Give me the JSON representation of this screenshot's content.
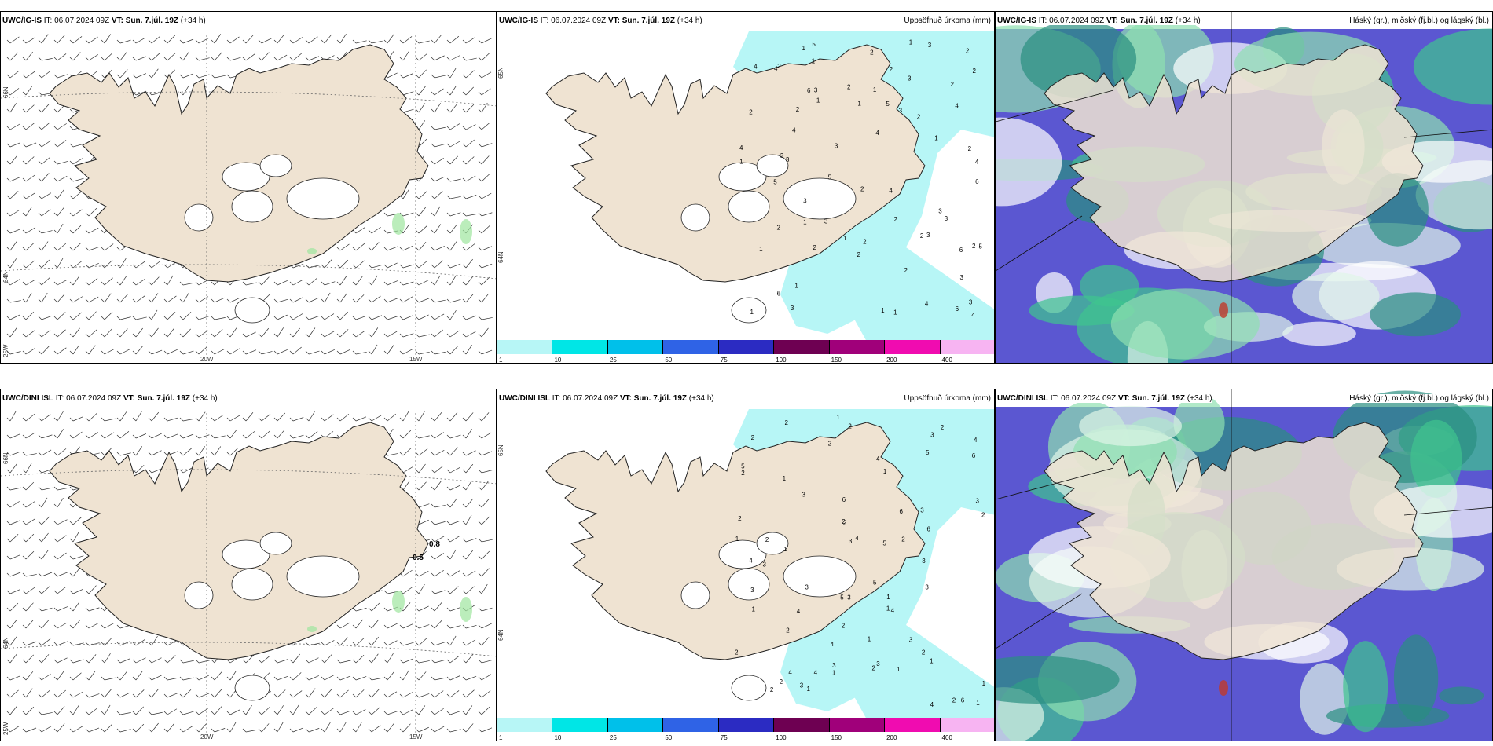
{
  "rows": [
    {
      "model": "UWC/IG-IS",
      "it_label": "IT:",
      "it_value": "06.07.2024 09Z",
      "vt_label": "VT:",
      "vt_value": "Sun. 7.júl. 19Z",
      "lead": "(+34 h)",
      "wind_labels": []
    },
    {
      "model": "UWC/DINI ISL",
      "it_label": "IT:",
      "it_value": "06.07.2024 09Z",
      "vt_label": "VT:",
      "vt_value": "Sun. 7.júl. 19Z",
      "lead": "(+34 h)",
      "wind_labels": [
        "0.8",
        "0.5"
      ]
    }
  ],
  "precip_title": "Uppsöfnuð úrkoma (mm)",
  "cloud_title": "Háský (gr.), miðský (fj.bl.) og lágský (bl.)",
  "lat_labels": [
    "66N",
    "64N"
  ],
  "lon_labels": [
    "25W",
    "20W",
    "15W"
  ],
  "lat_labels_mid": [
    "65N",
    "64N"
  ],
  "colorbar": {
    "ticks": [
      "1",
      "10",
      "25",
      "50",
      "75",
      "100",
      "150",
      "200",
      "400"
    ],
    "colors": [
      "#b7f6f6",
      "#00e6e6",
      "#00c0ea",
      "#2f63e6",
      "#2b2bc2",
      "#6e0052",
      "#a0007a",
      "#f00cb0",
      "#f7b4f2"
    ]
  },
  "colors": {
    "land": "#efe3d2",
    "precip": "#b7f6f6",
    "cloud_blue": "#5b57d1",
    "cloud_green": "#3ec48e"
  }
}
